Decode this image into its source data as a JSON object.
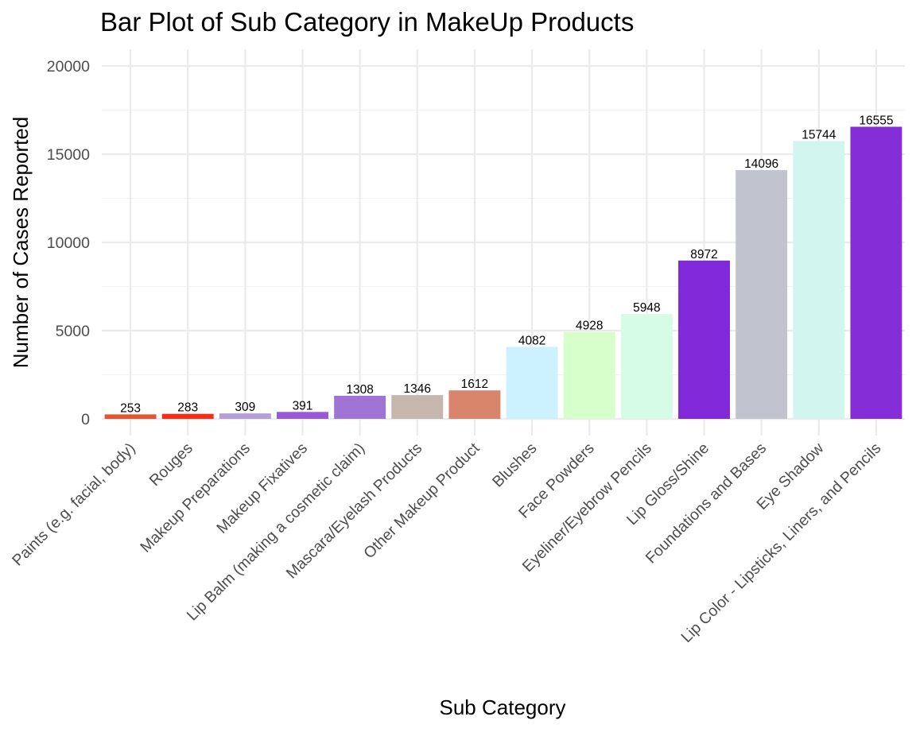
{
  "chart_data": {
    "type": "bar",
    "title": "Bar Plot of Sub Category in MakeUp Products",
    "xlabel": "Sub Category",
    "ylabel": "Number of Cases Reported",
    "ylim": [
      0,
      20000
    ],
    "yticks": [
      0,
      5000,
      10000,
      15000,
      20000
    ],
    "grid": true,
    "legend": "none",
    "categories": [
      "Paints (e.g. facial, body)",
      "Rouges",
      "Makeup Preparations",
      "Makeup Fixatives",
      "Lip Balm (making a cosmetic claim)",
      "Mascara/Eyelash Products",
      "Other Makeup Product",
      "Blushes",
      "Face Powders",
      "Eyeliner/Eyebrow Pencils",
      "Lip Gloss/Shine",
      "Foundations and Bases",
      "Eye Shadow",
      "Lip Color - Lipsticks, Liners, and Pencils"
    ],
    "values": [
      253,
      283,
      309,
      391,
      1308,
      1346,
      1612,
      4082,
      4928,
      5948,
      8972,
      14096,
      15744,
      16555
    ],
    "colors": [
      "#e8522e",
      "#ff2a12",
      "#b59fd6",
      "#9a58d6",
      "#9f74d4",
      "#c5b7ad",
      "#d8856b",
      "#ccf2ff",
      "#d6ffcc",
      "#d6fbe6",
      "#8128d8",
      "#c1c3cf",
      "#d2f6ef",
      "#852ed8"
    ]
  }
}
